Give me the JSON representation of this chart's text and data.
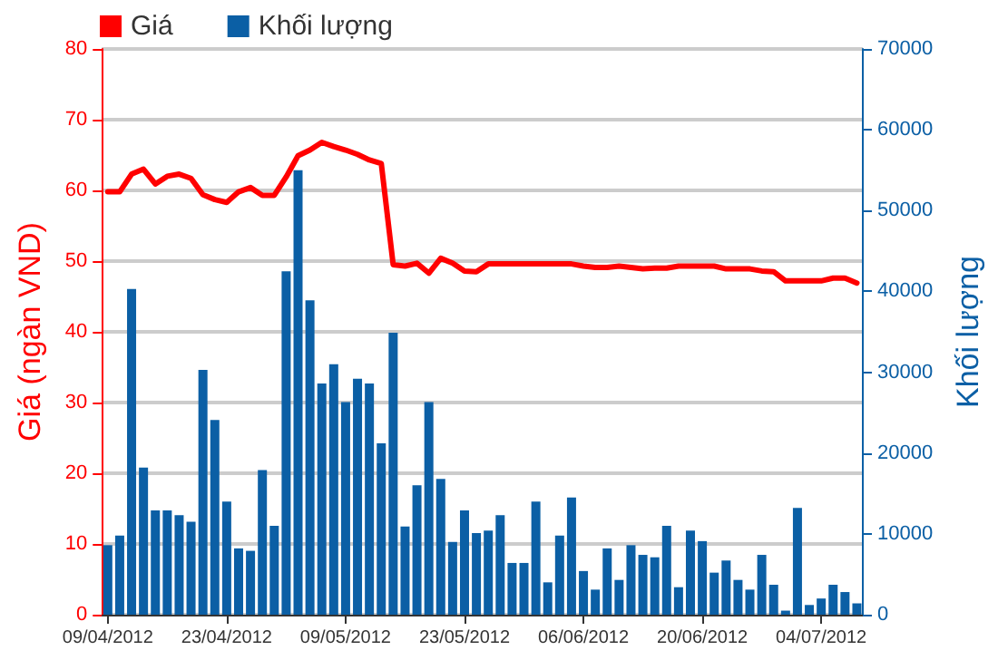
{
  "chart_data": {
    "type": "bar",
    "ylabel": "Giá (ngàn VND)",
    "y2label": "Khối lượng",
    "categories": [
      "09/04/2012",
      null,
      null,
      null,
      null,
      null,
      null,
      null,
      null,
      null,
      "23/04/2012",
      null,
      null,
      null,
      null,
      null,
      null,
      null,
      null,
      null,
      "09/05/2012",
      null,
      null,
      null,
      null,
      null,
      null,
      null,
      null,
      null,
      "23/05/2012",
      null,
      null,
      null,
      null,
      null,
      null,
      null,
      null,
      null,
      "06/06/2012",
      null,
      null,
      null,
      null,
      null,
      null,
      null,
      null,
      null,
      "20/06/2012",
      null,
      null,
      null,
      null,
      null,
      null,
      null,
      null,
      null,
      "04/07/2012",
      null,
      null,
      null
    ],
    "series": [
      {
        "name": "Giá",
        "type": "line",
        "color": "#ff0000",
        "values": [
          59.8,
          59.8,
          62.3,
          63.0,
          60.9,
          62.0,
          62.3,
          61.7,
          59.4,
          58.7,
          58.3,
          59.8,
          60.4,
          59.3,
          59.3,
          61.9,
          64.9,
          65.7,
          66.8,
          66.2,
          65.7,
          65.1,
          64.3,
          63.8,
          49.5,
          49.3,
          49.7,
          48.3,
          50.4,
          49.7,
          48.6,
          48.5,
          49.6,
          49.6,
          49.6,
          49.6,
          49.6,
          49.6,
          49.6,
          49.6,
          49.3,
          49.1,
          49.1,
          49.3,
          49.1,
          48.9,
          49.0,
          49.0,
          49.3,
          49.3,
          49.3,
          49.3,
          48.9,
          48.9,
          48.9,
          48.6,
          48.5,
          47.2,
          47.2,
          47.2,
          47.2,
          47.6,
          47.6,
          46.9
        ]
      },
      {
        "name": "Khối lượng",
        "axis": "y2",
        "color": "#0b5fa5",
        "values": [
          8600,
          9800,
          40300,
          18200,
          12900,
          12900,
          12300,
          11500,
          30300,
          24100,
          14000,
          8200,
          7900,
          17900,
          11000,
          42500,
          55000,
          38900,
          28600,
          31000,
          26300,
          29200,
          28600,
          21200,
          34900,
          10900,
          16000,
          26300,
          16800,
          9000,
          12900,
          10100,
          10400,
          12300,
          6400,
          6400,
          14000,
          4000,
          9800,
          14500,
          5400,
          3100,
          8200,
          4300,
          8600,
          7400,
          7100,
          11000,
          3400,
          10400,
          9100,
          5200,
          6700,
          4300,
          3100,
          7400,
          3700,
          500,
          13200,
          1200,
          2000,
          3700,
          2800,
          1400
        ]
      }
    ],
    "ylim": [
      0,
      80
    ],
    "yticks": [
      0,
      10,
      20,
      30,
      40,
      50,
      60,
      70,
      80
    ],
    "y2lim": [
      0,
      70000
    ],
    "y2ticks": [
      0,
      10000,
      20000,
      30000,
      40000,
      50000,
      60000,
      70000
    ],
    "grid": "y",
    "legend": "top left",
    "marker": "none",
    "line_style": "solid"
  }
}
